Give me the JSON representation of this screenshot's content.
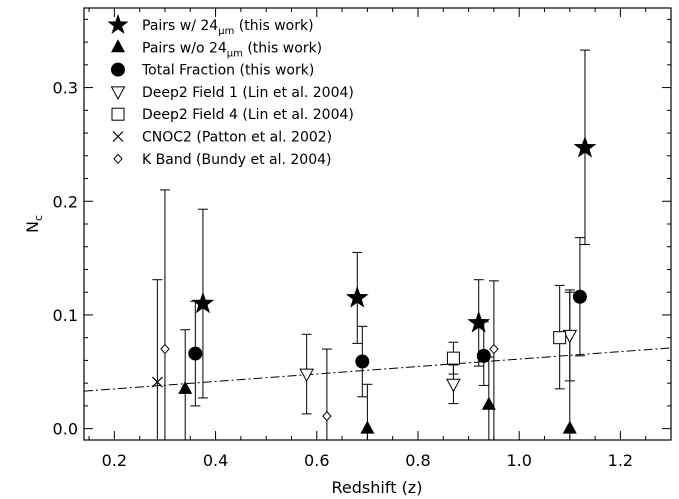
{
  "chart_data": {
    "type": "scatter",
    "title": "",
    "xlabel": "Redshift (z)",
    "ylabel": "N",
    "ylabel_sub": "c",
    "xlim": [
      0.14,
      1.3
    ],
    "ylim": [
      -0.01,
      0.37
    ],
    "xticks": [
      0.2,
      0.4,
      0.6,
      0.8,
      1.0,
      1.2
    ],
    "xtick_labels": [
      "0.2",
      "0.4",
      "0.6",
      "0.8",
      "1.0",
      "1.2"
    ],
    "yticks": [
      0.0,
      0.1,
      0.2,
      0.3
    ],
    "ytick_labels": [
      "0.0",
      "0.1",
      "0.2",
      "0.3"
    ],
    "grid": false,
    "legend_position": "top-left",
    "fit_line": {
      "style": "dash-dot",
      "x": [
        0.14,
        1.3
      ],
      "y": [
        0.033,
        0.071
      ]
    },
    "series": [
      {
        "name": "Pairs w/ 24μm (this work)",
        "label_main": "Pairs w/ 24",
        "label_sub": "μm",
        "label_tail": " (this work)",
        "marker": "filled-star",
        "points": [
          {
            "x": 0.375,
            "y": 0.11,
            "ylo": 0.027,
            "yhi": 0.193
          },
          {
            "x": 0.68,
            "y": 0.115,
            "ylo": 0.075,
            "yhi": 0.155
          },
          {
            "x": 0.92,
            "y": 0.093,
            "ylo": 0.055,
            "yhi": 0.131
          },
          {
            "x": 1.13,
            "y": 0.247,
            "ylo": 0.162,
            "yhi": 0.333
          }
        ]
      },
      {
        "name": "Pairs w/o 24μm (this work)",
        "label_main": "Pairs w/o 24",
        "label_sub": "μm",
        "label_tail": " (this work)",
        "marker": "filled-triangle",
        "points": [
          {
            "x": 0.34,
            "y": 0.035,
            "ylo": -0.01,
            "yhi": 0.087
          },
          {
            "x": 0.7,
            "y": 0.0,
            "ylo": -0.01,
            "yhi": 0.039
          },
          {
            "x": 0.94,
            "y": 0.021,
            "ylo": -0.01,
            "yhi": 0.063
          },
          {
            "x": 1.1,
            "y": 0.0,
            "ylo": -0.01,
            "yhi": 0.12
          }
        ]
      },
      {
        "name": "Total Fraction (this work)",
        "marker": "filled-circle",
        "points": [
          {
            "x": 0.36,
            "y": 0.066,
            "ylo": 0.02,
            "yhi": 0.112
          },
          {
            "x": 0.69,
            "y": 0.059,
            "ylo": 0.028,
            "yhi": 0.09
          },
          {
            "x": 0.93,
            "y": 0.064,
            "ylo": 0.038,
            "yhi": 0.094
          },
          {
            "x": 1.12,
            "y": 0.116,
            "ylo": 0.064,
            "yhi": 0.168
          }
        ]
      },
      {
        "name": "Deep2 Field 1 (Lin et al. 2004)",
        "marker": "open-down-triangle",
        "points": [
          {
            "x": 0.58,
            "y": 0.048,
            "ylo": 0.013,
            "yhi": 0.083
          },
          {
            "x": 0.87,
            "y": 0.039,
            "ylo": 0.022,
            "yhi": 0.056
          },
          {
            "x": 1.1,
            "y": 0.082,
            "ylo": 0.042,
            "yhi": 0.122
          }
        ]
      },
      {
        "name": "Deep2 Field 4 (Lin et al. 2004)",
        "marker": "open-square",
        "points": [
          {
            "x": 0.87,
            "y": 0.062,
            "ylo": 0.048,
            "yhi": 0.076
          },
          {
            "x": 1.08,
            "y": 0.08,
            "ylo": 0.035,
            "yhi": 0.126
          }
        ]
      },
      {
        "name": "CNOC2 (Patton et al. 2002)",
        "marker": "cross",
        "points": [
          {
            "x": 0.285,
            "y": 0.041,
            "ylo": -0.01,
            "yhi": 0.131
          }
        ]
      },
      {
        "name": "K Band (Bundy et al. 2004)",
        "marker": "open-diamond",
        "points": [
          {
            "x": 0.3,
            "y": 0.07,
            "ylo": -0.01,
            "yhi": 0.21
          },
          {
            "x": 0.62,
            "y": 0.011,
            "ylo": -0.01,
            "yhi": 0.07
          },
          {
            "x": 0.95,
            "y": 0.07,
            "ylo": -0.01,
            "yhi": 0.13
          }
        ]
      }
    ]
  }
}
